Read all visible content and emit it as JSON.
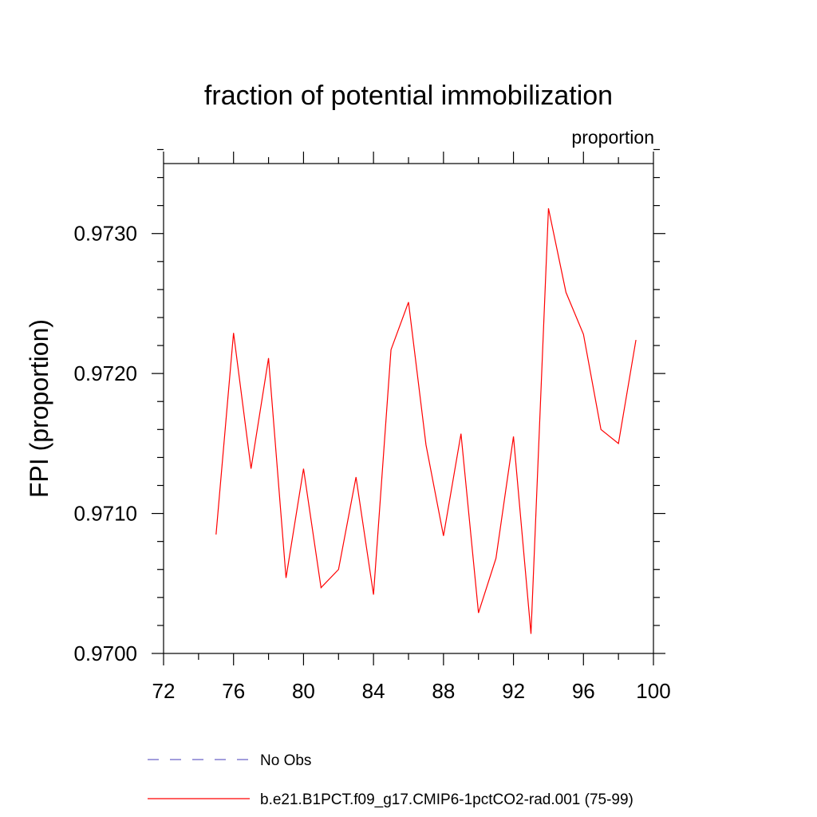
{
  "chart_data": {
    "type": "line",
    "title": "fraction of potential immobilization",
    "subtitle": "proportion",
    "ylabel": "FPI  (proportion)",
    "xlabel": "",
    "xlim": [
      72,
      100
    ],
    "ylim": [
      0.97,
      0.9735
    ],
    "xticks": [
      72,
      76,
      80,
      84,
      88,
      92,
      96,
      100
    ],
    "yticks": [
      0.97,
      0.971,
      0.972,
      0.973
    ],
    "ytick_labels": [
      "0.9700",
      "0.9710",
      "0.9720",
      "0.9730"
    ],
    "grid": false,
    "legend_placement": "bottom",
    "series": [
      {
        "name": "No Obs",
        "color": "#6b63c8",
        "dashed": true,
        "x": [],
        "y": []
      },
      {
        "name": "b.e21.B1PCT.f09_g17.CMIP6-1pctCO2-rad.001 (75-99)",
        "color": "#ff0000",
        "dashed": false,
        "x": [
          75,
          76,
          77,
          78,
          79,
          80,
          81,
          82,
          83,
          84,
          85,
          86,
          87,
          88,
          89,
          90,
          91,
          92,
          93,
          94,
          95,
          96,
          97,
          98,
          99
        ],
        "y": [
          0.97085,
          0.97229,
          0.97132,
          0.97211,
          0.97054,
          0.97132,
          0.97047,
          0.9706,
          0.97126,
          0.97042,
          0.97217,
          0.97251,
          0.97149,
          0.97084,
          0.97157,
          0.97029,
          0.97068,
          0.97155,
          0.97014,
          0.97318,
          0.97258,
          0.97228,
          0.9716,
          0.9715,
          0.97224
        ]
      }
    ]
  }
}
